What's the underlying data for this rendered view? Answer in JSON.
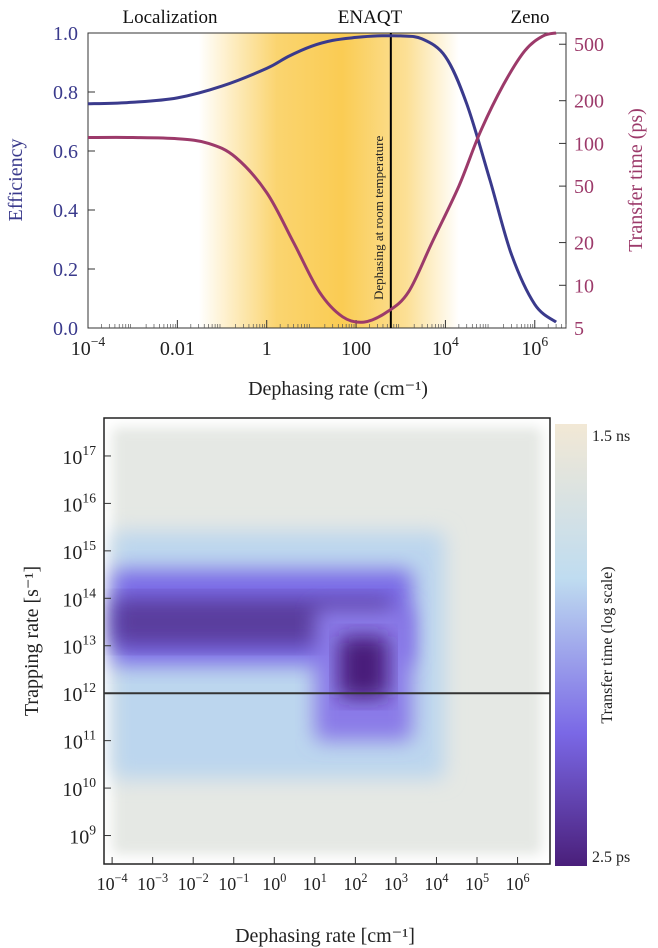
{
  "chart_data": [
    {
      "type": "line",
      "xlabel": "Dephasing rate (cm⁻¹)",
      "ylabel_left": "Efficiency",
      "ylabel_right": "Transfer time (ps)",
      "x_scale": "log",
      "xlim": [
        0.0001,
        5000000
      ],
      "ylim_left": [
        0,
        1
      ],
      "ylim_right": [
        5,
        600
      ],
      "y_right_scale": "log",
      "x_ticks": [
        {
          "value": 0.0001,
          "base": "10",
          "exp": "−4"
        },
        {
          "value": 0.01,
          "label": "0.01"
        },
        {
          "value": 1,
          "label": "1"
        },
        {
          "value": 100,
          "label": "100"
        },
        {
          "value": 10000,
          "base": "10",
          "exp": "4"
        },
        {
          "value": 1000000,
          "base": "10",
          "exp": "6"
        }
      ],
      "y_left_ticks": [
        "0.0",
        "0.2",
        "0.4",
        "0.6",
        "0.8",
        "1.0"
      ],
      "y_right_ticks": [
        5,
        10,
        20,
        50,
        100,
        200,
        500
      ],
      "regions": [
        "Localization",
        "ENAQT",
        "Zeno"
      ],
      "annotation": {
        "x": 600,
        "text": "Dephasing at room temperature"
      },
      "highlight_range": [
        0.03,
        20000
      ],
      "colors": {
        "efficiency": "#3a3a8c",
        "transfer": "#9c3a6a",
        "band": "#f9c640"
      },
      "series": [
        {
          "role": "efficiency",
          "x": [
            0.0001,
            0.001,
            0.01,
            0.1,
            1,
            3,
            10,
            30,
            100,
            300,
            1000,
            3000,
            10000,
            30000,
            100000,
            300000,
            1000000,
            3000000
          ],
          "y": [
            0.76,
            0.765,
            0.78,
            0.82,
            0.88,
            0.92,
            0.955,
            0.975,
            0.985,
            0.99,
            0.99,
            0.98,
            0.92,
            0.76,
            0.5,
            0.25,
            0.08,
            0.02
          ]
        },
        {
          "role": "transfer",
          "x": [
            0.0001,
            0.001,
            0.01,
            0.05,
            0.2,
            1,
            4,
            15,
            50,
            150,
            500,
            1500,
            5000,
            20000,
            60000,
            200000,
            600000,
            1500000,
            3000000
          ],
          "y": [
            110,
            110,
            108,
            100,
            80,
            45,
            20,
            9,
            6,
            5.5,
            6.5,
            9,
            20,
            50,
            120,
            260,
            450,
            570,
            600
          ]
        }
      ]
    },
    {
      "type": "heatmap",
      "xlabel": "Dephasing rate [cm⁻¹]",
      "ylabel": "Trapping rate [s⁻¹]",
      "x_scale": "log",
      "y_scale": "log",
      "xlim_log10": [
        -4.2,
        6.8
      ],
      "ylim_log10": [
        8.4,
        17.8
      ],
      "x_tick_exponents": [
        "−4",
        "−3",
        "−2",
        "−1",
        "0",
        "1",
        "2",
        "3",
        "4",
        "5",
        "6"
      ],
      "y_tick_exponents": [
        "9",
        "10",
        "11",
        "12",
        "13",
        "14",
        "15",
        "16",
        "17"
      ],
      "reference_line_log10": 12,
      "colorbar": {
        "label": "Transfer time (log scale)",
        "max_label": "1.5 ns",
        "min_label": "2.5 ps",
        "colors": [
          "#4a1f7a",
          "#7a68e6",
          "#bfdcf0",
          "#f2e8d5"
        ]
      },
      "region_log10": {
        "slow": {
          "x": [
            -4,
            6.6
          ],
          "y": [
            8.6,
            17.6
          ]
        },
        "mid": {
          "x": [
            -4,
            4.2
          ],
          "y": [
            10.2,
            15.4
          ]
        },
        "fast_band": {
          "x": [
            -4,
            3.4
          ],
          "y": [
            12.6,
            14.6
          ]
        },
        "min_spot": {
          "x": [
            1,
            3.4
          ],
          "y": [
            11,
            13.8
          ]
        }
      }
    }
  ]
}
